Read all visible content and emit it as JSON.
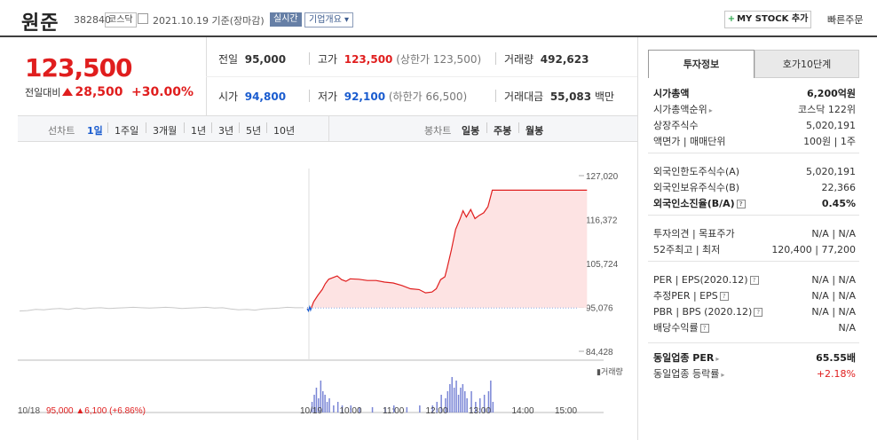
{
  "header": {
    "name": "원준",
    "code": "382840",
    "market": "코스닥",
    "date": "2021.10.19 기준(장마감)",
    "realtime": "실시간",
    "corp_info": "기업개요 ▾",
    "mystock": "MY STOCK 추가",
    "quick_order": "빠른주문"
  },
  "quote": {
    "price": "123,500",
    "diff_label": "전일대비",
    "diff": "28,500",
    "rate": "+30.00%",
    "prev_label": "전일",
    "prev": "95,000",
    "high_label": "고가",
    "high": "123,500",
    "high_limit": "(상한가 123,500)",
    "volume_label": "거래량",
    "volume": "492,623",
    "open_label": "시가",
    "open": "94,800",
    "low_label": "저가",
    "low": "92,100",
    "low_limit": "(하한가 66,500)",
    "amount_label": "거래대금",
    "amount": "55,083",
    "amount_unit": "백만"
  },
  "tabs": {
    "line_label": "선차트",
    "periods": [
      "1일",
      "1주일",
      "3개월",
      "1년",
      "3년",
      "5년",
      "10년"
    ],
    "candle_label": "봉차트",
    "candles": [
      "일봉",
      "주봉",
      "월봉"
    ]
  },
  "chart_data": {
    "type": "line",
    "y_ticks": [
      "127,020",
      "116,372",
      "105,724",
      "95,076",
      "84,428"
    ],
    "ylim": [
      84428,
      127020
    ],
    "base": 95000,
    "x_ticks": [
      "10/19",
      "10:00",
      "11:00",
      "12:00",
      "13:00",
      "14:00",
      "15:00"
    ],
    "volume_label": "거래량",
    "prev_day": {
      "date": "10/18",
      "close": "95,000",
      "change": "6,100 (+6.86%)"
    },
    "prev_series": [
      94200,
      94300,
      94600,
      94500,
      94700,
      94800,
      94600,
      94900,
      94700,
      94900,
      95000,
      94800,
      94900,
      95000,
      95100,
      95000,
      94900,
      95000,
      95100,
      95000,
      94800,
      94900,
      95000,
      95100,
      94900,
      95000,
      94700,
      94500,
      94600,
      94400,
      94700,
      94800,
      94900,
      95100,
      95000,
      95000
    ],
    "series": [
      {
        "time": 9.0,
        "value": 94800
      },
      {
        "time": 9.03,
        "value": 94200
      },
      {
        "time": 9.06,
        "value": 95200
      },
      {
        "time": 9.08,
        "value": 94400
      },
      {
        "time": 9.1,
        "value": 95000
      },
      {
        "time": 9.15,
        "value": 96400
      },
      {
        "time": 9.25,
        "value": 98000
      },
      {
        "time": 9.35,
        "value": 99400
      },
      {
        "time": 9.42,
        "value": 100800
      },
      {
        "time": 9.5,
        "value": 101900
      },
      {
        "time": 9.6,
        "value": 102300
      },
      {
        "time": 9.7,
        "value": 102700
      },
      {
        "time": 9.8,
        "value": 101800
      },
      {
        "time": 9.9,
        "value": 101400
      },
      {
        "time": 10.0,
        "value": 102000
      },
      {
        "time": 10.2,
        "value": 101900
      },
      {
        "time": 10.4,
        "value": 101600
      },
      {
        "time": 10.6,
        "value": 101600
      },
      {
        "time": 10.8,
        "value": 101200
      },
      {
        "time": 11.0,
        "value": 101000
      },
      {
        "time": 11.2,
        "value": 100400
      },
      {
        "time": 11.4,
        "value": 99600
      },
      {
        "time": 11.6,
        "value": 99400
      },
      {
        "time": 11.75,
        "value": 98600
      },
      {
        "time": 11.9,
        "value": 98800
      },
      {
        "time": 12.0,
        "value": 99600
      },
      {
        "time": 12.1,
        "value": 101800
      },
      {
        "time": 12.2,
        "value": 102500
      },
      {
        "time": 12.25,
        "value": 104500
      },
      {
        "time": 12.35,
        "value": 109000
      },
      {
        "time": 12.45,
        "value": 114000
      },
      {
        "time": 12.55,
        "value": 116500
      },
      {
        "time": 12.62,
        "value": 118500
      },
      {
        "time": 12.7,
        "value": 117000
      },
      {
        "time": 12.8,
        "value": 118800
      },
      {
        "time": 12.9,
        "value": 116600
      },
      {
        "time": 13.0,
        "value": 117400
      },
      {
        "time": 13.1,
        "value": 118000
      },
      {
        "time": 13.2,
        "value": 119500
      },
      {
        "time": 13.3,
        "value": 123500
      },
      {
        "time": 15.5,
        "value": 123500
      }
    ],
    "volumes": [
      {
        "time": 9.1,
        "value": 0.3
      },
      {
        "time": 9.15,
        "value": 0.5
      },
      {
        "time": 9.2,
        "value": 0.7
      },
      {
        "time": 9.25,
        "value": 0.4
      },
      {
        "time": 9.3,
        "value": 0.9
      },
      {
        "time": 9.35,
        "value": 0.6
      },
      {
        "time": 9.4,
        "value": 0.5
      },
      {
        "time": 9.45,
        "value": 0.3
      },
      {
        "time": 9.5,
        "value": 0.4
      },
      {
        "time": 9.6,
        "value": 0.2
      },
      {
        "time": 9.7,
        "value": 0.3
      },
      {
        "time": 9.8,
        "value": 0.2
      },
      {
        "time": 10.0,
        "value": 0.2
      },
      {
        "time": 10.2,
        "value": 0.15
      },
      {
        "time": 10.5,
        "value": 0.15
      },
      {
        "time": 10.8,
        "value": 0.15
      },
      {
        "time": 11.0,
        "value": 0.2
      },
      {
        "time": 11.3,
        "value": 0.15
      },
      {
        "time": 11.6,
        "value": 0.2
      },
      {
        "time": 11.9,
        "value": 0.2
      },
      {
        "time": 12.0,
        "value": 0.3
      },
      {
        "time": 12.1,
        "value": 0.5
      },
      {
        "time": 12.2,
        "value": 0.4
      },
      {
        "time": 12.25,
        "value": 0.6
      },
      {
        "time": 12.3,
        "value": 0.8
      },
      {
        "time": 12.35,
        "value": 1.0
      },
      {
        "time": 12.4,
        "value": 0.7
      },
      {
        "time": 12.45,
        "value": 0.9
      },
      {
        "time": 12.5,
        "value": 0.5
      },
      {
        "time": 12.55,
        "value": 0.7
      },
      {
        "time": 12.6,
        "value": 0.8
      },
      {
        "time": 12.65,
        "value": 0.6
      },
      {
        "time": 12.7,
        "value": 0.4
      },
      {
        "time": 12.8,
        "value": 0.6
      },
      {
        "time": 12.9,
        "value": 0.3
      },
      {
        "time": 13.0,
        "value": 0.4
      },
      {
        "time": 13.1,
        "value": 0.5
      },
      {
        "time": 13.2,
        "value": 0.6
      },
      {
        "time": 13.25,
        "value": 0.9
      },
      {
        "time": 13.3,
        "value": 0.3
      }
    ],
    "colors": {
      "up": "#e01e1e",
      "down": "#1a5ccf",
      "fill": "#fde3e3",
      "prev": "#c8c8c8",
      "volume": "#7a86d6"
    }
  },
  "side": {
    "tab_on": "투자정보",
    "tab_off": "호가10단계",
    "rows": [
      {
        "k": "시가총액",
        "v": "6,200억원",
        "bold": true
      },
      {
        "k": "시가총액순위",
        "v": "코스닥 122위",
        "arrow": true
      },
      {
        "k": "상장주식수",
        "v": "5,020,191"
      },
      {
        "k": "액면가 | 매매단위",
        "v": "100원 | 1주"
      },
      {
        "k": "외국인한도주식수(A)",
        "v": "5,020,191"
      },
      {
        "k": "외국인보유주식수(B)",
        "v": "22,366"
      },
      {
        "k": "외국인소진율(B/A)",
        "v": "0.45%",
        "bold": true,
        "info": true
      },
      {
        "k": "투자의견 | 목표주가",
        "v": "N/A | N/A"
      },
      {
        "k": "52주최고 | 최저",
        "v": "120,400 | 77,200"
      },
      {
        "k": "PER | EPS(2020.12)",
        "v": "N/A | N/A",
        "info": true
      },
      {
        "k": "추정PER | EPS",
        "v": "N/A | N/A",
        "info": true
      },
      {
        "k": "PBR | BPS (2020.12)",
        "v": "N/A | N/A",
        "info": true
      },
      {
        "k": "배당수익률",
        "v": "N/A",
        "info": true
      },
      {
        "k": "동일업종 PER",
        "v": "65.55배",
        "bold": true,
        "arrow": true
      },
      {
        "k": "동일업종 등락률",
        "v": "+2.18%",
        "arrow": true,
        "red": true
      }
    ]
  }
}
